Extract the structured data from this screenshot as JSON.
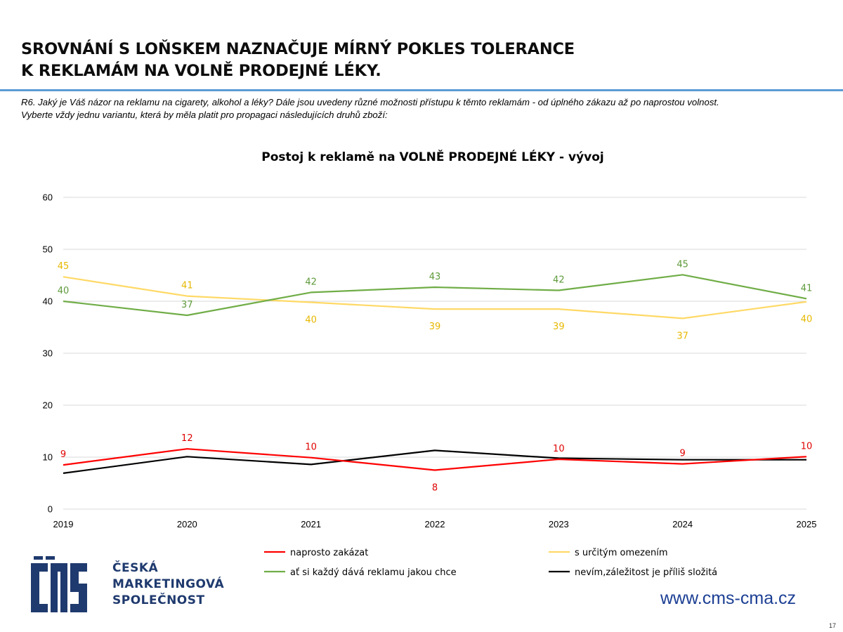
{
  "slide": {
    "title_lines": [
      "SROVNÁNÍ S LOŇSKEM NAZNAČUJE MÍRNÝ POKLES TOLERANCE",
      "K REKLAMÁM NA VOLNĚ PRODEJNÉ LÉKY."
    ],
    "question_lines": [
      "R6.  Jaký je Váš názor  na reklamu na cigarety, alkohol a léky? Dále jsou uvedeny různé možnosti přístupu k těmto reklamám - od úplného zákazu až po naprostou volnost.",
      "Vyberte vždy jednu variantu, která by měla platit pro propagaci následujících druhů zboží:"
    ],
    "logo_lines": [
      "ČESKÁ",
      "MARKETINGOVÁ",
      "SPOLEČNOST"
    ],
    "website": "www.cms-cma.cz",
    "page_number": "17"
  },
  "chart_data": {
    "type": "line",
    "title": "Postoj k reklamě na VOLNĚ PRODEJNÉ LÉKY - vývoj",
    "x": [
      "2019",
      "2020",
      "2021",
      "2022",
      "2023",
      "2024",
      "2025"
    ],
    "ylim": [
      0,
      60
    ],
    "yticks": [
      0,
      10,
      20,
      30,
      40,
      50,
      60
    ],
    "grid": true,
    "legend_position": "bottom",
    "series": [
      {
        "name": "naprosto zakázat",
        "color": "#ff0000",
        "values": [
          8.5,
          11.6,
          9.9,
          7.5,
          9.6,
          8.7,
          10.1
        ],
        "labels": [
          "9",
          "12",
          "10",
          "8",
          "10",
          "9",
          "10"
        ],
        "label_color": "#e00000",
        "label_pos": [
          "above",
          "above",
          "above",
          "below",
          "above",
          "above",
          "above"
        ]
      },
      {
        "name": "s určitým omezením",
        "color": "#ffd966",
        "values": [
          44.7,
          41.0,
          39.8,
          38.5,
          38.5,
          36.7,
          39.9
        ],
        "labels": [
          "45",
          "41",
          "40",
          "39",
          "39",
          "37",
          "40"
        ],
        "label_color": "#e6b800",
        "label_pos": [
          "above",
          "above",
          "below",
          "below",
          "below",
          "below",
          "below"
        ]
      },
      {
        "name": "ať si každý dává reklamu jakou chce",
        "color": "#70ad47",
        "values": [
          40.0,
          37.3,
          41.7,
          42.7,
          42.1,
          45.1,
          40.5
        ],
        "labels": [
          "40",
          "37",
          "42",
          "43",
          "42",
          "45",
          "41"
        ],
        "label_color": "#5e9a3a",
        "label_pos": [
          "above",
          "above",
          "above",
          "above",
          "above",
          "above",
          "above"
        ]
      },
      {
        "name": "nevím,záležitost je příliš složitá",
        "color": "#000000",
        "values": [
          6.9,
          10.1,
          8.6,
          11.3,
          9.8,
          9.5,
          9.5
        ],
        "labels": [],
        "label_color": "#000000",
        "label_pos": []
      }
    ]
  }
}
